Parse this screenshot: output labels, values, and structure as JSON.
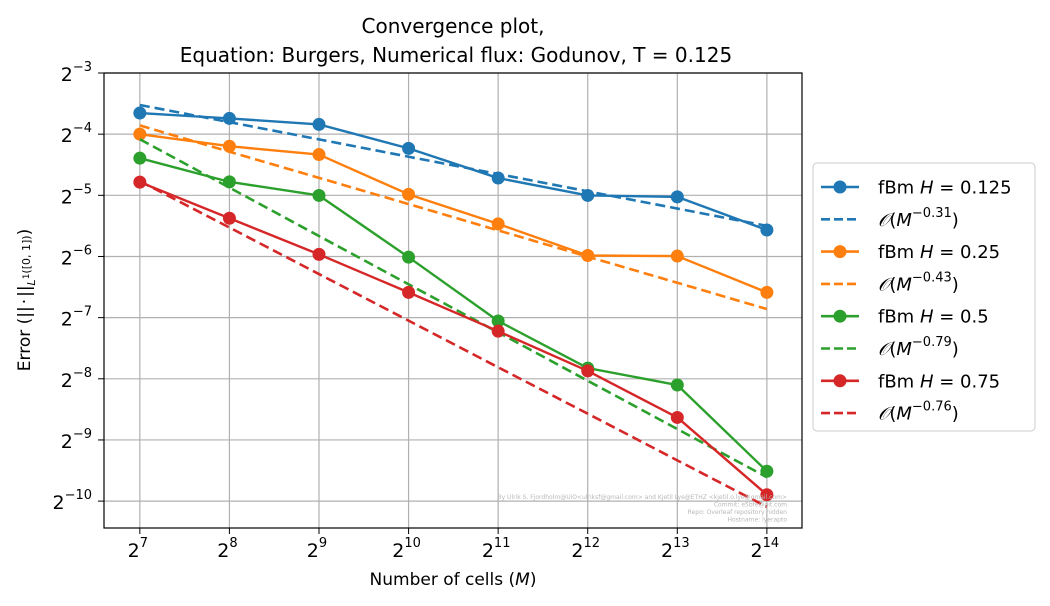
{
  "chart_data": {
    "type": "line",
    "title": [
      "Convergence plot,",
      "Equation: Burgers, Numerical flux: Godunov, T = 0.125"
    ],
    "xlabel": "Number of cells (M)",
    "ylabel": "Error (||·||L1([0,1]))",
    "x_scale": "log2",
    "y_scale": "log2",
    "x": [
      128,
      256,
      512,
      1024,
      2048,
      4096,
      8192,
      16384
    ],
    "xtick_exponents": [
      7,
      8,
      9,
      10,
      11,
      12,
      13,
      14
    ],
    "ytick_exponents": [
      -10,
      -9,
      -8,
      -7,
      -6,
      -5,
      -4,
      -3
    ],
    "xlim": [
      97,
      21500
    ],
    "ylim": [
      0.00072,
      0.125
    ],
    "grid": true,
    "legend_position": "outside-right",
    "series": [
      {
        "name": "fBm H = 0.125",
        "H": "0.125",
        "color": "#1f77b4",
        "style": "solid-marker",
        "values": [
          0.0794,
          0.0747,
          0.0698,
          0.0532,
          0.038,
          0.0312,
          0.0307,
          0.0211
        ]
      },
      {
        "name": "O(M^-0.31)",
        "rate": "-0.31",
        "color": "#1f77b4",
        "style": "dashed",
        "values": [
          0.087,
          0.0716,
          0.0589,
          0.0484,
          0.0398,
          0.0327,
          0.0269,
          0.0221
        ]
      },
      {
        "name": "fBm H = 0.25",
        "H": "0.25",
        "color": "#ff7f0e",
        "style": "solid-marker",
        "values": [
          0.0625,
          0.0545,
          0.0496,
          0.0316,
          0.0226,
          0.0158,
          0.0157,
          0.0104
        ]
      },
      {
        "name": "O(M^-0.43)",
        "rate": "-0.43",
        "color": "#ff7f0e",
        "style": "dashed",
        "values": [
          0.069,
          0.0512,
          0.0381,
          0.0283,
          0.021,
          0.0156,
          0.0116,
          0.00861
        ]
      },
      {
        "name": "fBm H = 0.5",
        "H": "0.5",
        "color": "#2ca02c",
        "style": "solid-marker",
        "values": [
          0.0476,
          0.0364,
          0.0312,
          0.0155,
          0.00752,
          0.00441,
          0.00364,
          0.00137
        ]
      },
      {
        "name": "O(M^-0.79)",
        "rate": "-0.79",
        "color": "#2ca02c",
        "style": "dashed",
        "values": [
          0.059,
          0.0341,
          0.0197,
          0.0114,
          0.00661,
          0.00382,
          0.00221,
          0.00128
        ]
      },
      {
        "name": "fBm H = 0.75",
        "H": "0.75",
        "color": "#d62728",
        "style": "solid-marker",
        "values": [
          0.0363,
          0.0241,
          0.016,
          0.0104,
          0.0067,
          0.00427,
          0.00252,
          0.00105
        ]
      },
      {
        "name": "O(M^-0.76)",
        "rate": "-0.76",
        "color": "#d62728",
        "style": "dashed",
        "values": [
          0.0367,
          0.0217,
          0.0128,
          0.00755,
          0.00445,
          0.00263,
          0.00155,
          0.000915
        ]
      }
    ],
    "annotation": [
      "By Ulrik S. Fjordholm@UiO<ulriksf@gmail.com> and Kjetil Lye@ETHZ <kjetil.o.lye@gmail.com>",
      "Commit: e5bfe@git.com",
      "Repo: Overleaf repository hidden",
      "Hostname: lyerapto"
    ]
  }
}
